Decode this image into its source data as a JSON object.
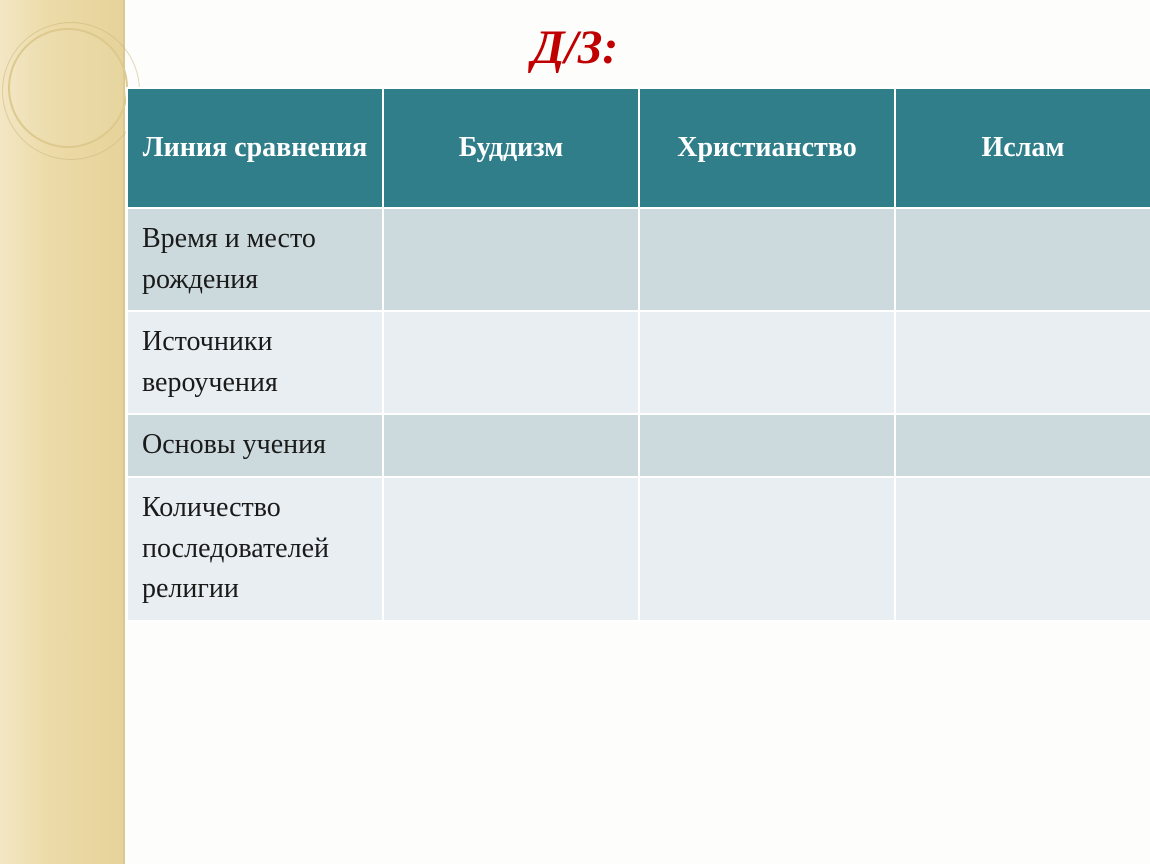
{
  "title": "Д/З:",
  "table": {
    "header_bg": "#2f7e8a",
    "header_color": "#ffffff",
    "row_alt_a_bg": "#ccdade",
    "row_alt_b_bg": "#e8eef1",
    "border_color": "#ffffff",
    "font_size_header": 28,
    "font_size_cell": 28,
    "columns": [
      {
        "label": "Линия сравнения"
      },
      {
        "label": "Буддизм"
      },
      {
        "label": "Христианство"
      },
      {
        "label": "Ислам"
      }
    ],
    "rows": [
      {
        "label": "Время и место рождения",
        "cells": [
          "",
          "",
          ""
        ]
      },
      {
        "label": "Источники вероучения",
        "cells": [
          "",
          "",
          ""
        ]
      },
      {
        "label": "Основы учения",
        "cells": [
          "",
          "",
          ""
        ]
      },
      {
        "label": "Количество последователей религии",
        "cells": [
          "",
          "",
          ""
        ]
      }
    ]
  },
  "decor": {
    "band_gradient_from": "#f3e6c4",
    "band_gradient_to": "#e6d39a",
    "circle_border": "#dcc98e"
  },
  "title_color": "#c00000"
}
